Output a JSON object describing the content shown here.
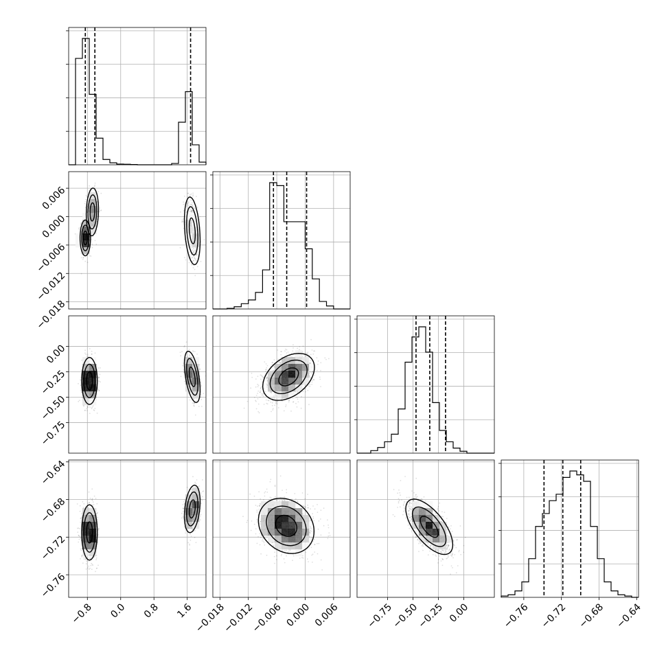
{
  "chart_data": {
    "type": "corner",
    "n_params": 4,
    "quantiles": [
      0.16,
      0.5,
      0.84
    ],
    "params": [
      {
        "range": [
          -1.25,
          2.05
        ],
        "ticks": [
          -0.8,
          0.0,
          0.8,
          1.6
        ],
        "tick_labels": [
          "−0.8",
          "0.0",
          "0.8",
          "1.6"
        ],
        "hist": {
          "edges": [
            -1.25,
            -1.085,
            -0.92,
            -0.755,
            -0.59,
            -0.425,
            -0.26,
            -0.095,
            0.07,
            0.235,
            0.4,
            0.565,
            0.73,
            0.895,
            1.06,
            1.225,
            1.39,
            1.555,
            1.72,
            1.885,
            2.05
          ],
          "counts": [
            0,
            0.8,
            0.95,
            0.53,
            0.2,
            0.04,
            0.015,
            0.005,
            0.004,
            0.002,
            0,
            0,
            0,
            0,
            0,
            0.01,
            0.32,
            0.55,
            0.15,
            0.02
          ]
        },
        "quantile_values": [
          -0.85,
          -0.62,
          1.68
        ]
      },
      {
        "range": [
          -0.0195,
          0.0095
        ],
        "ticks": [
          -0.018,
          -0.012,
          -0.006,
          0.0,
          0.006
        ],
        "tick_labels": [
          "−0.018",
          "−0.012",
          "−0.006",
          "0.000",
          "0.006"
        ],
        "hist": {
          "edges": [
            -0.0195,
            -0.018,
            -0.0165,
            -0.015,
            -0.0135,
            -0.012,
            -0.0105,
            -0.009,
            -0.0075,
            -0.006,
            -0.0045,
            -0.003,
            -0.0015,
            0.0,
            0.0015,
            0.003,
            0.0045,
            0.006,
            0.0075,
            0.009,
            0.0095
          ],
          "counts": [
            0,
            0,
            0.004,
            0.015,
            0.035,
            0.06,
            0.11,
            0.26,
            0.84,
            0.82,
            0.58,
            0.58,
            0.58,
            0.4,
            0.2,
            0.05,
            0.02,
            0,
            0,
            0
          ]
        },
        "quantile_values": [
          -0.0067,
          -0.0039,
          0.0003
        ]
      },
      {
        "range": [
          -1.05,
          0.3
        ],
        "ticks": [
          -0.75,
          -0.5,
          -0.25,
          0.0
        ],
        "tick_labels": [
          "−0.75",
          "−0.50",
          "−0.25",
          "0.00"
        ],
        "hist": {
          "edges": [
            -1.05,
            -0.9825,
            -0.915,
            -0.8475,
            -0.78,
            -0.7125,
            -0.645,
            -0.5775,
            -0.51,
            -0.4425,
            -0.375,
            -0.3075,
            -0.24,
            -0.1725,
            -0.105,
            -0.0375,
            0.03,
            0.0975,
            0.165,
            0.2325,
            0.3
          ],
          "counts": [
            0,
            0,
            0.02,
            0.045,
            0.09,
            0.15,
            0.35,
            0.72,
            0.92,
            1.0,
            0.8,
            0.4,
            0.18,
            0.09,
            0.04,
            0.015,
            0,
            0,
            0,
            0
          ]
        },
        "quantile_values": [
          -0.47,
          -0.335,
          -0.18
        ]
      },
      {
        "range": [
          -0.784,
          -0.638
        ],
        "ticks": [
          -0.76,
          -0.72,
          -0.68,
          -0.64
        ],
        "tick_labels": [
          "−0.76",
          "−0.72",
          "−0.68",
          "−0.64"
        ],
        "hist": {
          "edges": [
            -0.784,
            -0.7767,
            -0.7694,
            -0.7621,
            -0.7548,
            -0.7475,
            -0.7402,
            -0.7329,
            -0.7256,
            -0.7183,
            -0.711,
            -0.7037,
            -0.6964,
            -0.6891,
            -0.6818,
            -0.6745,
            -0.6672,
            -0.6599,
            -0.6526,
            -0.6453,
            -0.638
          ],
          "counts": [
            0.01,
            0.02,
            0.05,
            0.12,
            0.3,
            0.55,
            0.65,
            0.75,
            0.8,
            0.93,
            0.98,
            0.95,
            0.9,
            0.55,
            0.3,
            0.12,
            0.05,
            0.02,
            0.01,
            0
          ]
        },
        "quantile_values": [
          -0.7385,
          -0.7185,
          -0.6995
        ]
      }
    ],
    "pairs": [
      {
        "row": 1,
        "col": 0,
        "blobs": [
          {
            "cx": -0.85,
            "cy": -0.0045,
            "sx": 0.06,
            "sy": 0.0018,
            "rho": 0.0,
            "w": 1.0
          },
          {
            "cx": -0.68,
            "cy": 0.001,
            "sx": 0.07,
            "sy": 0.0024,
            "rho": 0.1,
            "w": 0.8
          },
          {
            "cx": 1.72,
            "cy": -0.003,
            "sx": 0.09,
            "sy": 0.0034,
            "rho": -0.3,
            "w": 0.8
          }
        ]
      },
      {
        "row": 2,
        "col": 0,
        "blobs": [
          {
            "cx": -0.75,
            "cy": -0.34,
            "sx": 0.09,
            "sy": 0.11,
            "rho": 0.0,
            "w": 1.0
          },
          {
            "cx": 1.72,
            "cy": -0.3,
            "sx": 0.09,
            "sy": 0.12,
            "rho": -0.5,
            "w": 0.6
          }
        ]
      },
      {
        "row": 2,
        "col": 1,
        "blobs": [
          {
            "cx": -0.0035,
            "cy": -0.3,
            "sx": 0.0026,
            "sy": 0.11,
            "rho": 0.4,
            "w": 1.0
          }
        ]
      },
      {
        "row": 3,
        "col": 0,
        "blobs": [
          {
            "cx": -0.75,
            "cy": -0.715,
            "sx": 0.09,
            "sy": 0.014,
            "rho": 0.0,
            "w": 1.0
          },
          {
            "cx": 1.72,
            "cy": -0.69,
            "sx": 0.09,
            "sy": 0.012,
            "rho": 0.3,
            "w": 0.6
          }
        ]
      },
      {
        "row": 3,
        "col": 1,
        "blobs": [
          {
            "cx": -0.004,
            "cy": -0.708,
            "sx": 0.0028,
            "sy": 0.014,
            "rho": -0.2,
            "w": 1.0
          }
        ]
      },
      {
        "row": 3,
        "col": 2,
        "blobs": [
          {
            "cx": -0.34,
            "cy": -0.709,
            "sx": 0.11,
            "sy": 0.014,
            "rho": -0.65,
            "w": 1.0
          }
        ]
      }
    ],
    "grid": true
  }
}
